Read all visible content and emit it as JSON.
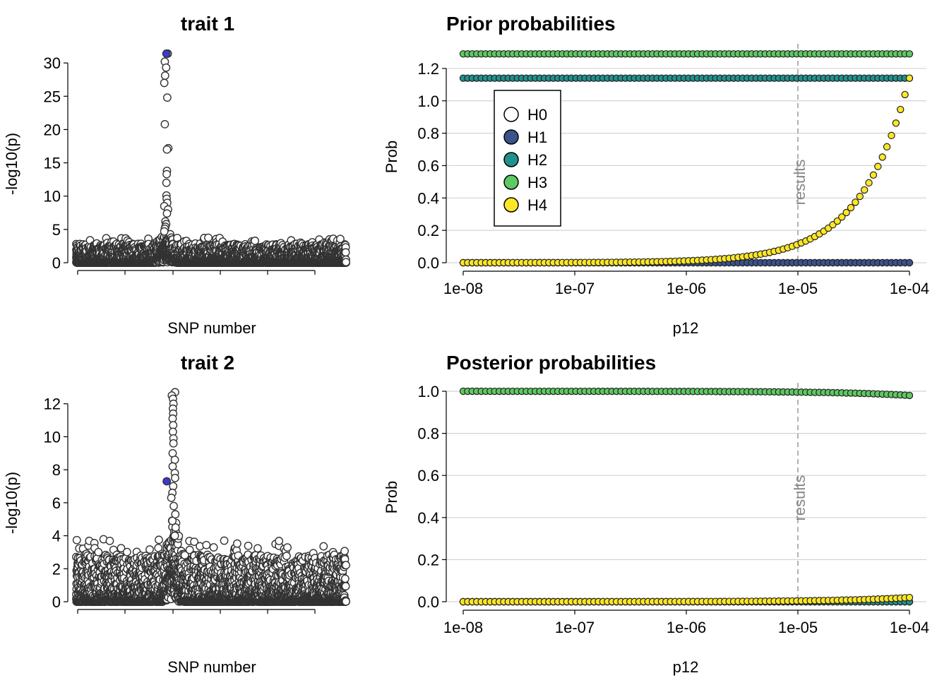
{
  "colors": {
    "H0": "#ffffff",
    "H1": "#3b528b",
    "H2": "#21918c",
    "H3": "#5ec962",
    "H4": "#fde725",
    "highlight": "#3a3ad6",
    "points": "#333333",
    "grid": "#d3d3d3",
    "annotation": "#999999"
  },
  "chart_data": [
    {
      "id": "trait1",
      "type": "scatter",
      "title": "trait 1",
      "xlabel": "SNP number",
      "ylabel": "-log10(p)",
      "ylim": [
        0,
        31.5
      ],
      "yticks": [
        0,
        5,
        10,
        15,
        20,
        25,
        30
      ],
      "n_snps": 1000,
      "peak_snp": 334,
      "peak_values": [
        31.4,
        30.2,
        29.3,
        28.1,
        27.0,
        24.8,
        20.8,
        17.2,
        17.0,
        13.8,
        13.3,
        12.0,
        10.1,
        9.6,
        9.0,
        8.5,
        8.0,
        7.4,
        6.2,
        5.8,
        5.4,
        5.1,
        4.7
      ],
      "highlighted": [
        {
          "snp": 334,
          "value": 31.4
        }
      ],
      "background_max": 3.8
    },
    {
      "id": "trait2",
      "type": "scatter",
      "title": "trait 2",
      "xlabel": "SNP number",
      "ylabel": "-log10(p)",
      "ylim": [
        0,
        12.8
      ],
      "yticks": [
        0,
        2,
        4,
        6,
        8,
        10,
        12
      ],
      "n_snps": 1000,
      "peak_snp": 360,
      "peak_values": [
        12.7,
        12.5,
        12.3,
        12.0,
        11.7,
        11.4,
        11.1,
        10.7,
        10.3,
        9.9,
        9.6,
        9.0,
        8.6,
        8.2,
        7.8,
        7.5,
        7.0,
        6.6,
        6.3,
        5.8,
        5.3,
        4.9,
        4.5,
        4.0
      ],
      "highlighted": [
        {
          "snp": 335,
          "value": 7.3
        }
      ],
      "background_max": 3.8
    },
    {
      "id": "prior",
      "type": "scatter",
      "title": "Prior probabilities",
      "xlabel": "p12",
      "ylabel": "Prob",
      "xscale": "log10",
      "xlim": [
        1e-08,
        0.0001
      ],
      "xticks": [
        "1e-08",
        "1e-07",
        "1e-06",
        "1e-05",
        "1e-04"
      ],
      "ylim": [
        0,
        1.3
      ],
      "yticks": [
        "0.0",
        "0.2",
        "0.4",
        "0.6",
        "0.8",
        "1.0",
        "1.2"
      ],
      "vline": {
        "x": 1e-05,
        "label": "results"
      },
      "n_points": 100,
      "series": [
        {
          "name": "H0",
          "values": "constant 0.0"
        },
        {
          "name": "H1",
          "values": "constant 0.0"
        },
        {
          "name": "H2",
          "values": "constant 1.14"
        },
        {
          "name": "H3",
          "values": "constant 1.29"
        },
        {
          "name": "H4",
          "values": "≈ 1.14 × 1e4 × p12 (0.0 at 1e-08 → 1.14 at 1e-04)"
        }
      ],
      "legend": {
        "position": "top-left",
        "entries": [
          "H0",
          "H1",
          "H2",
          "H3",
          "H4"
        ]
      }
    },
    {
      "id": "posterior",
      "type": "scatter",
      "title": "Posterior probabilities",
      "xlabel": "p12",
      "ylabel": "Prob",
      "xscale": "log10",
      "xlim": [
        1e-08,
        0.0001
      ],
      "xticks": [
        "1e-08",
        "1e-07",
        "1e-06",
        "1e-05",
        "1e-04"
      ],
      "ylim": [
        0,
        1.0
      ],
      "yticks": [
        "0.0",
        "0.2",
        "0.4",
        "0.6",
        "0.8",
        "1.0"
      ],
      "vline": {
        "x": 1e-05,
        "label": "results"
      },
      "n_points": 100,
      "series": [
        {
          "name": "H0",
          "values": "constant 0.0"
        },
        {
          "name": "H1",
          "values": "constant 0.0"
        },
        {
          "name": "H2",
          "values": "constant 0.0"
        },
        {
          "name": "H3",
          "values": "≈ 1.0 → 0.98"
        },
        {
          "name": "H4",
          "values": "≈ 0.0 → 0.02"
        }
      ]
    }
  ]
}
